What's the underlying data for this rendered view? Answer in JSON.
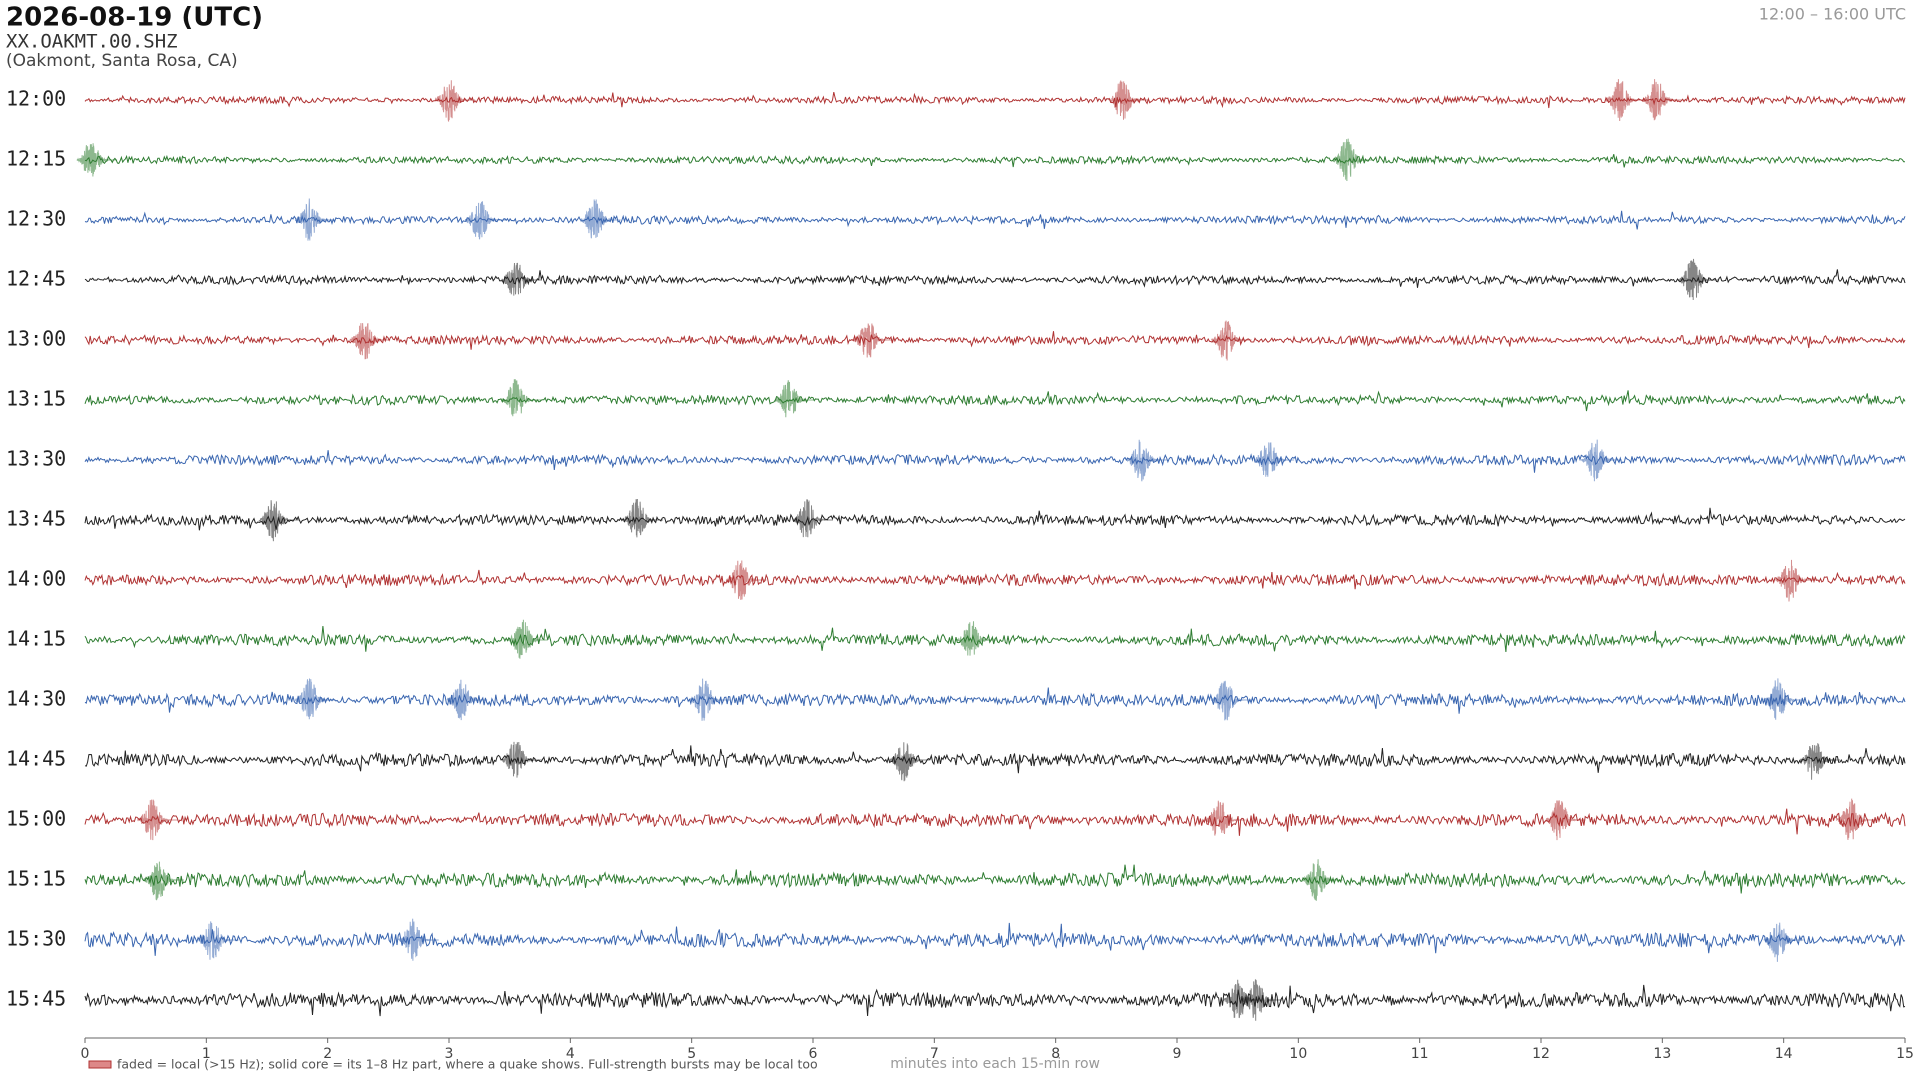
{
  "chart_data": {
    "type": "helicorder",
    "title": "2026-08-19  (UTC)",
    "station": "XX.OAKMT.00.SHZ",
    "location": "(Oakmont, Santa Rosa, CA)",
    "time_range": "12:00 – 16:00 UTC",
    "x_label": "minutes into each 15-min row",
    "note": "faded = local (>15 Hz); solid core = its 1–8 Hz part, where a quake shows. Full-strength bursts may be local too",
    "categories": [
      "12:00",
      "12:15",
      "12:30",
      "12:45",
      "13:00",
      "13:15",
      "13:30",
      "13:45",
      "14:00",
      "14:15",
      "14:30",
      "14:45",
      "15:00",
      "15:15",
      "15:30",
      "15:45"
    ],
    "colors": [
      "#b03333",
      "#2f7d32",
      "#3a66b0",
      "#222222"
    ],
    "events": [
      [
        3.05,
        8.6,
        12.7,
        13.0
      ],
      [
        0.1,
        10.45
      ],
      [
        1.9,
        3.3,
        4.25
      ],
      [
        3.6,
        13.3
      ],
      [
        2.35,
        6.5,
        9.45
      ],
      [
        3.6,
        5.85
      ],
      [
        8.75,
        9.8,
        12.5
      ],
      [
        1.6,
        4.6,
        6.0
      ],
      [
        5.45,
        14.1
      ],
      [
        3.65,
        7.35
      ],
      [
        1.9,
        3.15,
        5.15,
        9.45,
        14.0
      ],
      [
        3.6,
        6.8,
        14.3
      ],
      [
        0.6,
        9.4,
        12.2,
        14.6
      ],
      [
        0.65,
        10.2
      ],
      [
        1.1,
        2.75,
        14.0
      ],
      [
        9.55,
        9.7
      ]
    ],
    "xlim": [
      0,
      15
    ],
    "xticks": [
      0,
      1,
      2,
      3,
      4,
      5,
      6,
      7,
      8,
      9,
      10,
      11,
      12,
      13,
      14,
      15
    ]
  }
}
